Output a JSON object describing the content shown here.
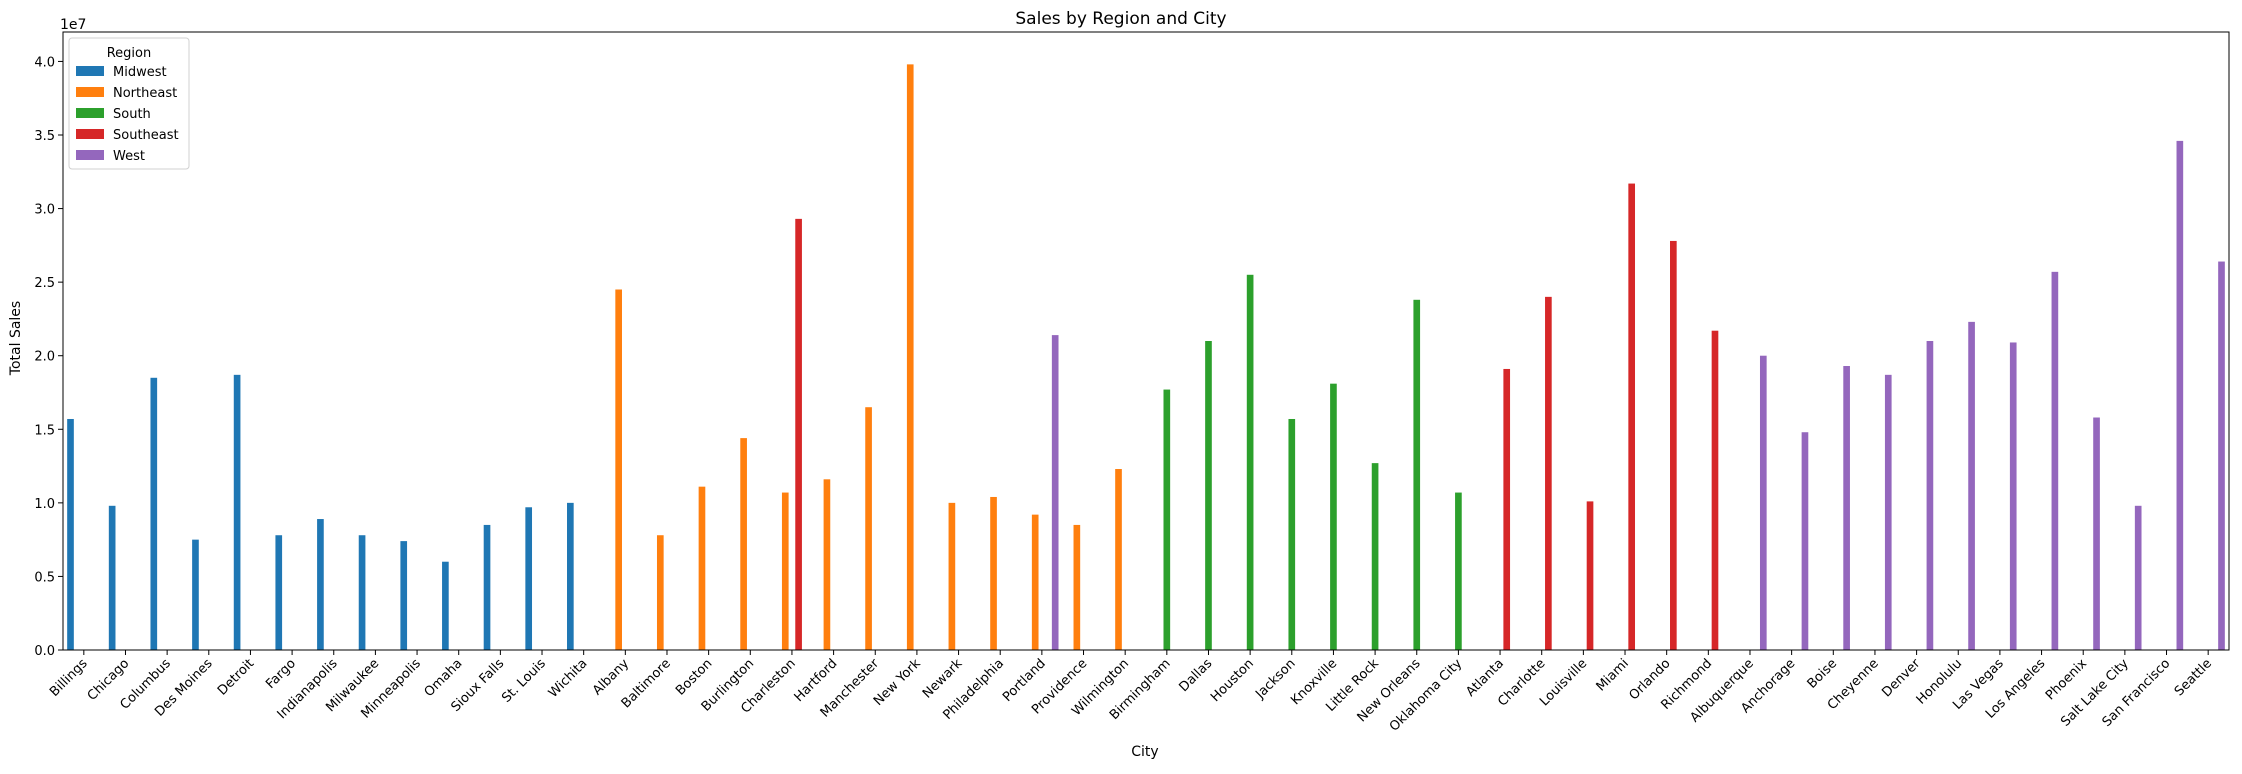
{
  "chart_data": {
    "type": "bar",
    "title": "Sales by Region and City",
    "xlabel": "City",
    "ylabel": "Total Sales",
    "y_offset_label": "1e7",
    "y_scale_multiplier": 10000000,
    "ylim": [
      0,
      42000000
    ],
    "yticks": [
      0,
      5000000,
      10000000,
      15000000,
      20000000,
      25000000,
      30000000,
      35000000,
      40000000
    ],
    "ytick_labels": [
      "0.0",
      "0.5",
      "1.0",
      "1.5",
      "2.0",
      "2.5",
      "3.0",
      "3.5",
      "4.0"
    ],
    "grid": false,
    "legend_position": "upper-left",
    "legend_title": "Region",
    "categories": [
      "Billings",
      "Chicago",
      "Columbus",
      "Des Moines",
      "Detroit",
      "Fargo",
      "Indianapolis",
      "Milwaukee",
      "Minneapolis",
      "Omaha",
      "Sioux Falls",
      "St. Louis",
      "Wichita",
      "Albany",
      "Baltimore",
      "Boston",
      "Burlington",
      "Charleston",
      "Hartford",
      "Manchester",
      "New York",
      "Newark",
      "Philadelphia",
      "Portland",
      "Providence",
      "Wilmington",
      "Birmingham",
      "Dallas",
      "Houston",
      "Jackson",
      "Knoxville",
      "Little Rock",
      "New Orleans",
      "Oklahoma City",
      "Atlanta",
      "Charlotte",
      "Louisville",
      "Miami",
      "Orlando",
      "Richmond",
      "Albuquerque",
      "Anchorage",
      "Boise",
      "Cheyenne",
      "Denver",
      "Honolulu",
      "Las Vegas",
      "Los Angeles",
      "Phoenix",
      "Salt Lake City",
      "San Francisco",
      "Seattle"
    ],
    "series": [
      {
        "name": "Midwest",
        "color": "#1f77b4",
        "values": [
          15700000,
          9800000,
          18500000,
          7500000,
          18700000,
          7800000,
          8900000,
          7800000,
          7400000,
          6000000,
          8500000,
          9700000,
          10000000,
          null,
          null,
          null,
          null,
          null,
          null,
          null,
          null,
          null,
          null,
          null,
          null,
          null,
          null,
          null,
          null,
          null,
          null,
          null,
          null,
          null,
          null,
          null,
          null,
          null,
          null,
          null,
          null,
          null,
          null,
          null,
          null,
          null,
          null,
          null,
          null,
          null,
          null,
          null
        ]
      },
      {
        "name": "Northeast",
        "color": "#ff7f0e",
        "values": [
          null,
          null,
          null,
          null,
          null,
          null,
          null,
          null,
          null,
          null,
          null,
          null,
          null,
          24500000,
          7800000,
          11100000,
          14400000,
          10700000,
          11600000,
          16500000,
          39800000,
          10000000,
          10400000,
          9200000,
          8500000,
          12300000,
          null,
          null,
          null,
          null,
          null,
          null,
          null,
          null,
          null,
          null,
          null,
          null,
          null,
          null,
          null,
          null,
          null,
          null,
          null,
          null,
          null,
          null,
          null,
          null,
          null,
          null
        ]
      },
      {
        "name": "South",
        "color": "#2ca02c",
        "values": [
          null,
          null,
          null,
          null,
          null,
          null,
          null,
          null,
          null,
          null,
          null,
          null,
          null,
          null,
          null,
          null,
          null,
          null,
          null,
          null,
          null,
          null,
          null,
          null,
          null,
          null,
          17700000,
          21000000,
          25500000,
          15700000,
          18100000,
          12700000,
          23800000,
          10700000,
          null,
          null,
          null,
          null,
          null,
          null,
          null,
          null,
          null,
          null,
          null,
          null,
          null,
          null,
          null,
          null,
          null,
          null
        ]
      },
      {
        "name": "Southeast",
        "color": "#d62728",
        "values": [
          null,
          null,
          null,
          null,
          null,
          null,
          null,
          null,
          null,
          null,
          null,
          null,
          null,
          null,
          null,
          null,
          null,
          29300000,
          null,
          null,
          null,
          null,
          null,
          null,
          null,
          null,
          null,
          null,
          null,
          null,
          null,
          null,
          null,
          null,
          19100000,
          24000000,
          10100000,
          31700000,
          27800000,
          21700000,
          null,
          null,
          null,
          null,
          null,
          null,
          null,
          null,
          null,
          null,
          null,
          null
        ]
      },
      {
        "name": "West",
        "color": "#9467bd",
        "values": [
          null,
          null,
          null,
          null,
          null,
          null,
          null,
          null,
          null,
          null,
          null,
          null,
          null,
          null,
          null,
          null,
          null,
          null,
          null,
          null,
          null,
          null,
          null,
          21400000,
          null,
          null,
          null,
          null,
          null,
          null,
          null,
          null,
          null,
          null,
          null,
          null,
          null,
          null,
          null,
          null,
          20000000,
          14800000,
          19300000,
          18700000,
          21000000,
          22300000,
          20900000,
          25700000,
          15800000,
          9800000,
          34600000,
          26400000
        ]
      }
    ]
  }
}
